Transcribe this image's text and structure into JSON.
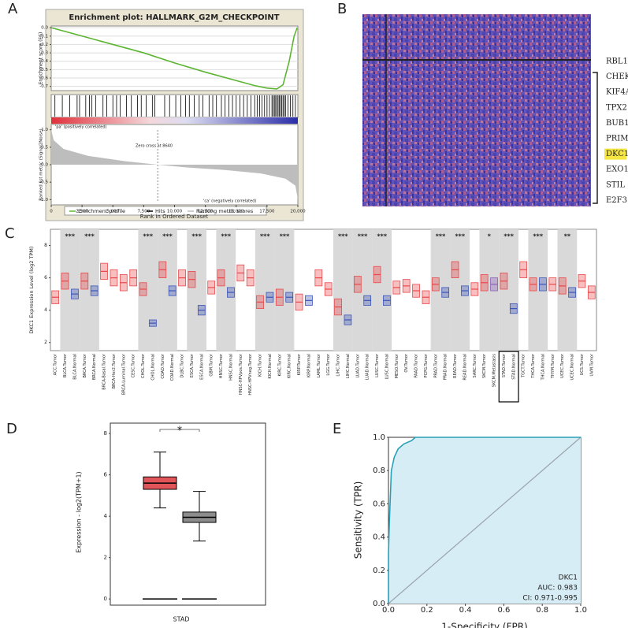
{
  "chart_data": [
    {
      "panel": "A",
      "type": "line",
      "title": "Enrichment plot: HALLMARK_G2M_CHECKPOINT",
      "ylabel": "Enrichment score (ES)",
      "xlabel": "Rank in Ordered Dataset",
      "xlim": [
        0,
        20000
      ],
      "xticks": [
        0,
        {
          "value": 2500,
          "label": "2,500"
        },
        {
          "value": 5000,
          "label": "5,000"
        },
        {
          "value": 7500,
          "label": "7,500"
        },
        {
          "value": 10000,
          "label": "10,000"
        },
        {
          "value": 12500,
          "label": "12,500"
        },
        {
          "value": 15000,
          "label": "15,000"
        },
        {
          "value": 17500,
          "label": "17,500"
        },
        {
          "value": 20000,
          "label": "20,000"
        }
      ],
      "ylim": [
        -0.75,
        0.02
      ],
      "yticks": [
        {
          "value": 0,
          "label": "0.0"
        },
        -0.1,
        -0.2,
        -0.3,
        -0.4,
        -0.5,
        -0.6,
        -0.7
      ],
      "x": [
        0,
        500,
        1500,
        3000,
        5000,
        7500,
        10000,
        12500,
        15000,
        16500,
        17500,
        18300,
        18800,
        19300,
        19700,
        19950
      ],
      "series": [
        {
          "name": "Enrichment profile",
          "color": "#5cb531",
          "values": [
            0,
            -0.02,
            -0.06,
            -0.12,
            -0.2,
            -0.3,
            -0.42,
            -0.53,
            -0.63,
            -0.69,
            -0.72,
            -0.73,
            -0.68,
            -0.4,
            -0.1,
            0
          ]
        }
      ],
      "hits": {
        "name": "Hits",
        "color": "#000000",
        "x": [
          300,
          900,
          1500,
          2100,
          2300,
          2800,
          3100,
          3300,
          3600,
          4200,
          4500,
          5000,
          5300,
          5600,
          6100,
          6500,
          7000,
          7300,
          7700,
          8200,
          8400,
          9200,
          9600,
          10100,
          10500,
          10900,
          11200,
          11600,
          12000,
          12300,
          12800,
          13100,
          13400,
          13800,
          14100,
          14400,
          14700,
          15000,
          15300,
          15600,
          15900,
          16200,
          16500,
          16700,
          16900,
          17100,
          17300,
          17500,
          17700,
          17900,
          18000,
          18100,
          18200,
          18300,
          18400,
          18500,
          18600,
          18700,
          18800,
          18900,
          19000,
          19200,
          19400,
          19600,
          19800
        ]
      },
      "metric": {
        "name": "Ranking metric scores",
        "color": "#bdbdbd",
        "ylabel": "Ranked list metric (Signal2Noise)",
        "ylim": [
          -1.15,
          1.15
        ],
        "yticks": [
          {
            "value": 1,
            "label": "1.0"
          },
          0.5,
          {
            "value": 0,
            "label": "0.0"
          },
          -0.5,
          {
            "value": -1,
            "label": "-1.0"
          }
        ],
        "x": [
          0,
          200,
          1000,
          3000,
          6000,
          8640,
          11000,
          14000,
          17000,
          19000,
          19800,
          20000
        ],
        "values": [
          1.0,
          0.7,
          0.45,
          0.25,
          0.1,
          0,
          -0.08,
          -0.15,
          -0.25,
          -0.4,
          -0.6,
          -1.0
        ]
      },
      "annotations": [
        "'pa' (positively correlated)",
        "Zero cross at 8640",
        "'ca' (negatively correlated)"
      ]
    },
    {
      "panel": "B",
      "type": "heatmap",
      "genes": [
        "RBL1",
        "CHEK1",
        "KIF4A",
        "TPX2",
        "BUB1",
        "PRIM2",
        "DKC1",
        "EXO1",
        "STIL",
        "E2F3"
      ],
      "highlight": "#f5e642"
    },
    {
      "panel": "C",
      "type": "box",
      "ylabel": "DKC1 Expression Level (log2 TPM)",
      "ylim": [
        1.5,
        9
      ],
      "yticks": [
        2,
        4,
        6,
        8
      ],
      "categories": [
        "ACC.Tumor",
        "BLCA.Tumor",
        "BLCA.Normal",
        "BRCA.Tumor",
        "BRCA.Normal",
        "BRCA-Basal.Tumor",
        "BRCA-Her2.Tumor",
        "BRCA-Luminal.Tumor",
        "CESC.Tumor",
        "CHOL.Tumor",
        "CHOL.Normal",
        "COAD.Tumor",
        "COAD.Normal",
        "DLBC.Tumor",
        "ESCA.Tumor",
        "ESCA.Normal",
        "GBM.Tumor",
        "HNSC.Tumor",
        "HNSC.Normal",
        "HNSC-HPVpos.Tumor",
        "HNSC-HPVneg.Tumor",
        "KICH.Tumor",
        "KICH.Normal",
        "KIRC.Tumor",
        "KIRC.Normal",
        "KIRP.Tumor",
        "KIRP.Normal",
        "LAML.Tumor",
        "LGG.Tumor",
        "LIHC.Tumor",
        "LIHC.Normal",
        "LUAD.Tumor",
        "LUAD.Normal",
        "LUSC.Tumor",
        "LUSC.Normal",
        "MESO.Tumor",
        "OV.Tumor",
        "PAAD.Tumor",
        "PCPG.Tumor",
        "PRAD.Tumor",
        "PRAD.Normal",
        "READ.Tumor",
        "READ.Normal",
        "SARC.Tumor",
        "SKCM.Tumor",
        "SKCM.Metastasis",
        "STAD.Tumor",
        "STAD.Normal",
        "TGCT.Tumor",
        "THCA.Tumor",
        "THCA.Normal",
        "THYM.Tumor",
        "UCEC.Tumor",
        "UCEC.Normal",
        "UCS.Tumor",
        "UVM.Tumor"
      ],
      "median": [
        4.8,
        5.8,
        5.0,
        5.8,
        5.2,
        6.4,
        6.0,
        5.7,
        6.0,
        5.3,
        3.2,
        6.5,
        5.2,
        6.0,
        5.9,
        4.0,
        5.4,
        6.0,
        5.1,
        6.3,
        6.0,
        4.5,
        4.8,
        4.8,
        4.8,
        4.5,
        4.6,
        6.0,
        5.3,
        4.2,
        3.4,
        5.6,
        4.6,
        6.2,
        4.6,
        5.4,
        5.5,
        5.2,
        4.8,
        5.6,
        5.1,
        6.5,
        5.2,
        5.3,
        5.7,
        5.6,
        5.8,
        4.1,
        6.5,
        5.6,
        5.6,
        5.6,
        5.5,
        5.1,
        5.8,
        5.1
      ],
      "q1": [
        4.4,
        5.3,
        4.7,
        5.3,
        4.9,
        5.9,
        5.5,
        5.2,
        5.5,
        4.9,
        3.0,
        6.0,
        4.9,
        5.5,
        5.4,
        3.7,
        5.0,
        5.5,
        4.8,
        5.8,
        5.5,
        4.1,
        4.5,
        4.3,
        4.5,
        4.0,
        4.3,
        5.5,
        4.9,
        3.7,
        3.1,
        5.1,
        4.3,
        5.7,
        4.3,
        5.0,
        5.1,
        4.8,
        4.4,
        5.2,
        4.8,
        6.0,
        4.9,
        4.9,
        5.2,
        5.2,
        5.3,
        3.8,
        6.0,
        5.2,
        5.2,
        5.2,
        5.0,
        4.8,
        5.4,
        4.7
      ],
      "q3": [
        5.2,
        6.3,
        5.3,
        6.3,
        5.5,
        6.9,
        6.5,
        6.2,
        6.5,
        5.7,
        3.4,
        7.0,
        5.5,
        6.5,
        6.4,
        4.3,
        5.8,
        6.5,
        5.4,
        6.8,
        6.5,
        4.9,
        5.1,
        5.3,
        5.1,
        5.0,
        4.9,
        6.5,
        5.7,
        4.7,
        3.7,
        6.1,
        4.9,
        6.7,
        4.9,
        5.8,
        5.9,
        5.6,
        5.2,
        6.0,
        5.4,
        7.0,
        5.5,
        5.7,
        6.2,
        6.0,
        6.3,
        4.4,
        7.0,
        6.0,
        6.0,
        6.0,
        6.0,
        5.4,
        6.2,
        5.5
      ],
      "colors": [
        "#e8484b",
        "#e8484b",
        "#3d55b8",
        "#e8484b",
        "#3d55b8",
        "#e8484b",
        "#e8484b",
        "#e8484b",
        "#e8484b",
        "#e8484b",
        "#3d55b8",
        "#e8484b",
        "#3d55b8",
        "#e8484b",
        "#e8484b",
        "#3d55b8",
        "#e8484b",
        "#e8484b",
        "#3d55b8",
        "#e8484b",
        "#e8484b",
        "#e8484b",
        "#3d55b8",
        "#e8484b",
        "#3d55b8",
        "#e8484b",
        "#3d55b8",
        "#e8484b",
        "#e8484b",
        "#e8484b",
        "#3d55b8",
        "#e8484b",
        "#3d55b8",
        "#e8484b",
        "#3d55b8",
        "#e8484b",
        "#e8484b",
        "#e8484b",
        "#e8484b",
        "#e8484b",
        "#3d55b8",
        "#e8484b",
        "#3d55b8",
        "#e8484b",
        "#e8484b",
        "#8a5fb8",
        "#e8484b",
        "#3d55b8",
        "#e8484b",
        "#e8484b",
        "#3d55b8",
        "#e8484b",
        "#e8484b",
        "#3d55b8",
        "#e8484b",
        "#e8484b"
      ],
      "significance": [
        null,
        "***",
        null,
        "***",
        null,
        null,
        null,
        null,
        null,
        "***",
        null,
        "***",
        null,
        null,
        "***",
        null,
        null,
        "***",
        null,
        null,
        null,
        "***",
        null,
        "***",
        null,
        null,
        null,
        null,
        null,
        "***",
        null,
        "***",
        null,
        "***",
        null,
        null,
        null,
        null,
        null,
        "***",
        null,
        "***",
        null,
        null,
        "*",
        null,
        "***",
        null,
        null,
        "***",
        null,
        null,
        "**",
        null,
        null,
        null
      ]
    },
    {
      "panel": "D",
      "type": "box",
      "ylabel": "Expression - log2(TPM+1)",
      "xlabel": "STAD",
      "ylim": [
        -0.3,
        8.5
      ],
      "yticks": [
        0,
        2,
        4,
        6,
        8
      ],
      "annotation": "*",
      "boxes": [
        {
          "q1": 5.3,
          "median": 5.6,
          "q3": 5.9,
          "low": 4.4,
          "high": 7.1,
          "color": "#e0545a"
        },
        {
          "q1": 3.7,
          "median": 3.95,
          "q3": 4.2,
          "low": 2.8,
          "high": 5.2,
          "color": "#8c8c8c"
        }
      ]
    },
    {
      "panel": "E",
      "type": "line",
      "xlabel": "1-Specificity (FPR)",
      "ylabel": "Sensitivity (TPR)",
      "xlim": [
        0,
        1
      ],
      "ylim": [
        0,
        1
      ],
      "xticks": [
        {
          "value": 0,
          "label": "0.0"
        },
        0.2,
        0.4,
        0.6,
        0.8,
        {
          "value": 1,
          "label": "1.0"
        }
      ],
      "yticks": [
        {
          "value": 0,
          "label": "0.0"
        },
        0.2,
        0.4,
        0.6,
        0.8,
        {
          "value": 1,
          "label": "1.0"
        }
      ],
      "x": [
        0,
        0,
        0.005,
        0.01,
        0.015,
        0.03,
        0.05,
        0.08,
        0.12,
        0.14,
        1
      ],
      "series": [
        {
          "name": "DKC1",
          "color": "#2aa0b8",
          "values": [
            0,
            0.3,
            0.5,
            0.65,
            0.8,
            0.88,
            0.93,
            0.96,
            0.98,
            1,
            1
          ]
        }
      ],
      "fill": "#d6edf5",
      "annotations": [
        "AUC: 0.983",
        "CI: 0.971-0.995"
      ]
    }
  ]
}
